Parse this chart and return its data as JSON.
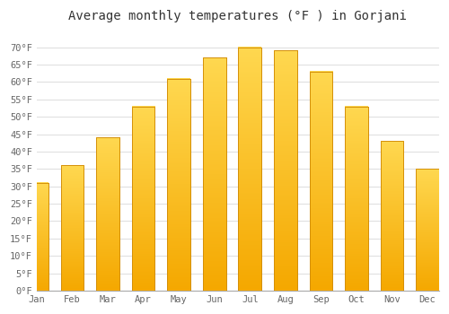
{
  "title": "Average monthly temperatures (°F ) in Gorjani",
  "months": [
    "Jan",
    "Feb",
    "Mar",
    "Apr",
    "May",
    "Jun",
    "Jul",
    "Aug",
    "Sep",
    "Oct",
    "Nov",
    "Dec"
  ],
  "values": [
    31,
    36,
    44,
    53,
    61,
    67,
    70,
    69,
    63,
    53,
    43,
    35
  ],
  "bar_color_bottom": "#F5A800",
  "bar_color_top": "#FFD060",
  "bar_color_edge": "#D4900A",
  "background_color": "#FFFFFF",
  "grid_color": "#E0E0E0",
  "ylim": [
    0,
    75
  ],
  "yticks": [
    0,
    5,
    10,
    15,
    20,
    25,
    30,
    35,
    40,
    45,
    50,
    55,
    60,
    65,
    70
  ],
  "ytick_labels": [
    "0°F",
    "5°F",
    "10°F",
    "15°F",
    "20°F",
    "25°F",
    "30°F",
    "35°F",
    "40°F",
    "45°F",
    "50°F",
    "55°F",
    "60°F",
    "65°F",
    "70°F"
  ],
  "title_fontsize": 10,
  "tick_fontsize": 7.5,
  "tick_font_color": "#666666",
  "title_font_color": "#333333",
  "bar_width": 0.65
}
